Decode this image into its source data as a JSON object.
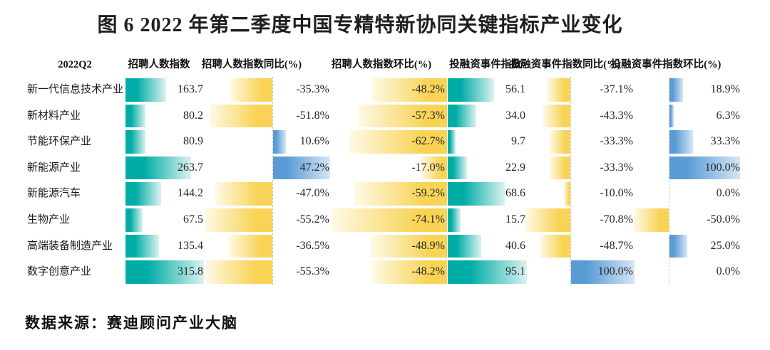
{
  "title": "图 6 2022 年第二季度中国专精特新协同关键指标产业变化",
  "source": "数据来源：赛迪顾问产业大脑",
  "colors": {
    "index_bar_teal": "#00aca6",
    "negative_bar_yellow": "#f8d355",
    "positive_bar_blue": "#5b9bd5",
    "axis_dashed_line": "#c8c8c8"
  },
  "chart_data": {
    "type": "table",
    "period_label": "2022Q2",
    "columns": [
      "招聘人数指数",
      "招聘人数指数同比(%)",
      "招聘人数指数环比(%)",
      "投融资事件指数",
      "投融资事件指数同比(%)",
      "投融资事件指数环比(%)"
    ],
    "legend_note": "teal bars = index level, yellow bars = negative %, blue bars = positive %",
    "rows": [
      {
        "industry": "新一代信息技术产业",
        "recruit_index": 163.7,
        "recruit_yoy": -35.3,
        "recruit_qoq": -48.2,
        "invest_index": 56.1,
        "invest_yoy": -37.1,
        "invest_qoq": 18.9
      },
      {
        "industry": "新材料产业",
        "recruit_index": 80.2,
        "recruit_yoy": -51.8,
        "recruit_qoq": -57.3,
        "invest_index": 34.0,
        "invest_yoy": -43.3,
        "invest_qoq": 6.3
      },
      {
        "industry": "节能环保产业",
        "recruit_index": 80.9,
        "recruit_yoy": 10.6,
        "recruit_qoq": -62.7,
        "invest_index": 9.7,
        "invest_yoy": -33.3,
        "invest_qoq": 33.3
      },
      {
        "industry": "新能源产业",
        "recruit_index": 263.7,
        "recruit_yoy": 47.2,
        "recruit_qoq": -17.0,
        "invest_index": 22.9,
        "invest_yoy": -33.3,
        "invest_qoq": 100.0
      },
      {
        "industry": "新能源汽车",
        "recruit_index": 144.2,
        "recruit_yoy": -47.0,
        "recruit_qoq": -59.2,
        "invest_index": 68.6,
        "invest_yoy": -10.0,
        "invest_qoq": 0.0
      },
      {
        "industry": "生物产业",
        "recruit_index": 67.5,
        "recruit_yoy": -55.2,
        "recruit_qoq": -74.1,
        "invest_index": 15.7,
        "invest_yoy": -70.8,
        "invest_qoq": -50.0
      },
      {
        "industry": "高端装备制造产业",
        "recruit_index": 135.4,
        "recruit_yoy": -36.5,
        "recruit_qoq": -48.9,
        "invest_index": 40.6,
        "invest_yoy": -48.7,
        "invest_qoq": 25.0
      },
      {
        "industry": "数字创意产业",
        "recruit_index": 315.8,
        "recruit_yoy": -55.3,
        "recruit_qoq": -48.2,
        "invest_index": 95.1,
        "invest_yoy": 100.0,
        "invest_qoq": 0.0
      }
    ]
  }
}
